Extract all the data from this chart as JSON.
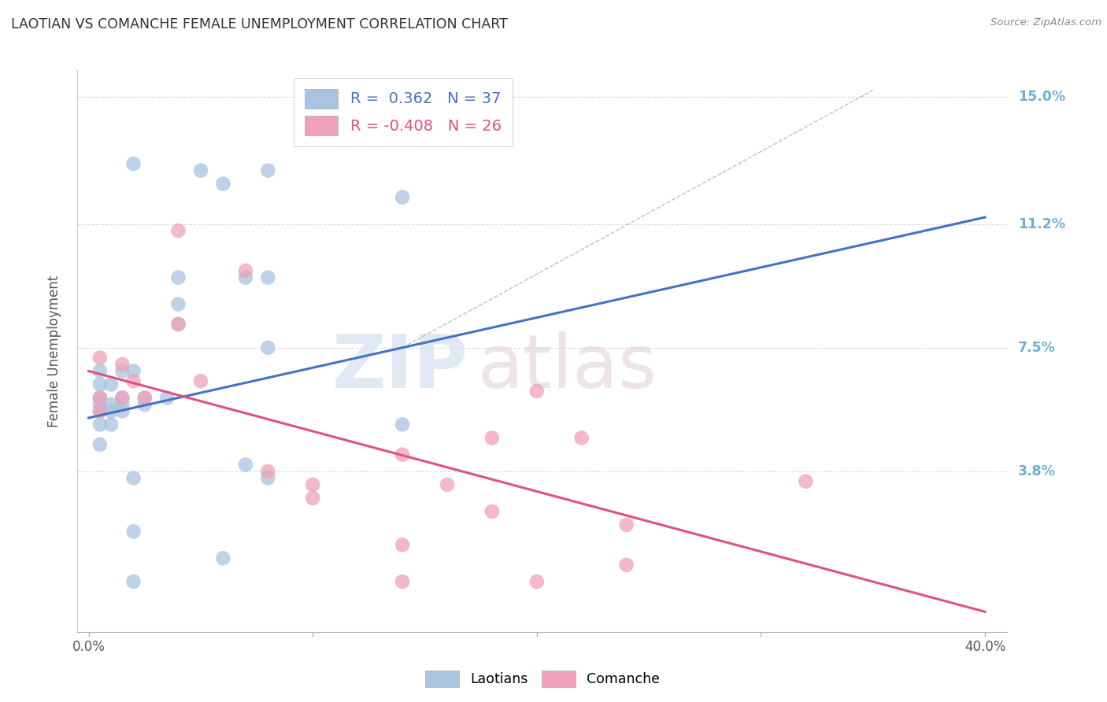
{
  "title": "LAOTIAN VS COMANCHE FEMALE UNEMPLOYMENT CORRELATION CHART",
  "source": "Source: ZipAtlas.com",
  "ylabel": "Female Unemployment",
  "xlim": [
    -0.005,
    0.41
  ],
  "ylim": [
    -0.01,
    0.158
  ],
  "yticks": [
    0.038,
    0.075,
    0.112,
    0.15
  ],
  "ytick_labels": [
    "3.8%",
    "7.5%",
    "11.2%",
    "15.0%"
  ],
  "xticks": [
    0.0,
    0.1,
    0.2,
    0.3,
    0.4
  ],
  "xtick_labels_shown": [
    "0.0%",
    "",
    "",
    "",
    "40.0%"
  ],
  "laotian_color": "#a8c4e0",
  "comanche_color": "#f0a0b8",
  "laotian_R": "0.362",
  "laotian_N": "37",
  "comanche_R": "-0.408",
  "comanche_N": "26",
  "laotian_scatter": [
    [
      0.02,
      0.13
    ],
    [
      0.05,
      0.128
    ],
    [
      0.08,
      0.128
    ],
    [
      0.06,
      0.124
    ],
    [
      0.14,
      0.12
    ],
    [
      0.04,
      0.096
    ],
    [
      0.07,
      0.096
    ],
    [
      0.08,
      0.096
    ],
    [
      0.04,
      0.088
    ],
    [
      0.04,
      0.082
    ],
    [
      0.08,
      0.075
    ],
    [
      0.005,
      0.068
    ],
    [
      0.015,
      0.068
    ],
    [
      0.02,
      0.068
    ],
    [
      0.005,
      0.064
    ],
    [
      0.01,
      0.064
    ],
    [
      0.005,
      0.06
    ],
    [
      0.015,
      0.06
    ],
    [
      0.025,
      0.06
    ],
    [
      0.035,
      0.06
    ],
    [
      0.005,
      0.058
    ],
    [
      0.01,
      0.058
    ],
    [
      0.015,
      0.058
    ],
    [
      0.025,
      0.058
    ],
    [
      0.005,
      0.056
    ],
    [
      0.01,
      0.056
    ],
    [
      0.015,
      0.056
    ],
    [
      0.005,
      0.052
    ],
    [
      0.01,
      0.052
    ],
    [
      0.14,
      0.052
    ],
    [
      0.005,
      0.046
    ],
    [
      0.07,
      0.04
    ],
    [
      0.02,
      0.036
    ],
    [
      0.08,
      0.036
    ],
    [
      0.02,
      0.02
    ],
    [
      0.06,
      0.012
    ],
    [
      0.02,
      0.005
    ]
  ],
  "comanche_scatter": [
    [
      0.04,
      0.11
    ],
    [
      0.07,
      0.098
    ],
    [
      0.04,
      0.082
    ],
    [
      0.005,
      0.072
    ],
    [
      0.015,
      0.07
    ],
    [
      0.02,
      0.065
    ],
    [
      0.05,
      0.065
    ],
    [
      0.005,
      0.06
    ],
    [
      0.015,
      0.06
    ],
    [
      0.025,
      0.06
    ],
    [
      0.005,
      0.056
    ],
    [
      0.2,
      0.062
    ],
    [
      0.18,
      0.048
    ],
    [
      0.22,
      0.048
    ],
    [
      0.14,
      0.043
    ],
    [
      0.08,
      0.038
    ],
    [
      0.1,
      0.034
    ],
    [
      0.16,
      0.034
    ],
    [
      0.1,
      0.03
    ],
    [
      0.18,
      0.026
    ],
    [
      0.24,
      0.022
    ],
    [
      0.14,
      0.016
    ],
    [
      0.24,
      0.01
    ],
    [
      0.32,
      0.035
    ],
    [
      0.14,
      0.005
    ],
    [
      0.2,
      0.005
    ]
  ],
  "laotian_line": [
    [
      0.0,
      0.054
    ],
    [
      0.4,
      0.114
    ]
  ],
  "comanche_line": [
    [
      0.0,
      0.068
    ],
    [
      0.4,
      -0.004
    ]
  ],
  "diag_line": [
    [
      0.14,
      0.075
    ],
    [
      0.35,
      0.152
    ]
  ],
  "laotian_line_color": "#4472c4",
  "comanche_line_color": "#e05080",
  "diag_line_color": "#b0b8c8",
  "grid_color": "#d8d8d8",
  "title_color": "#333333",
  "right_label_color": "#6baed6",
  "background_color": "#ffffff"
}
